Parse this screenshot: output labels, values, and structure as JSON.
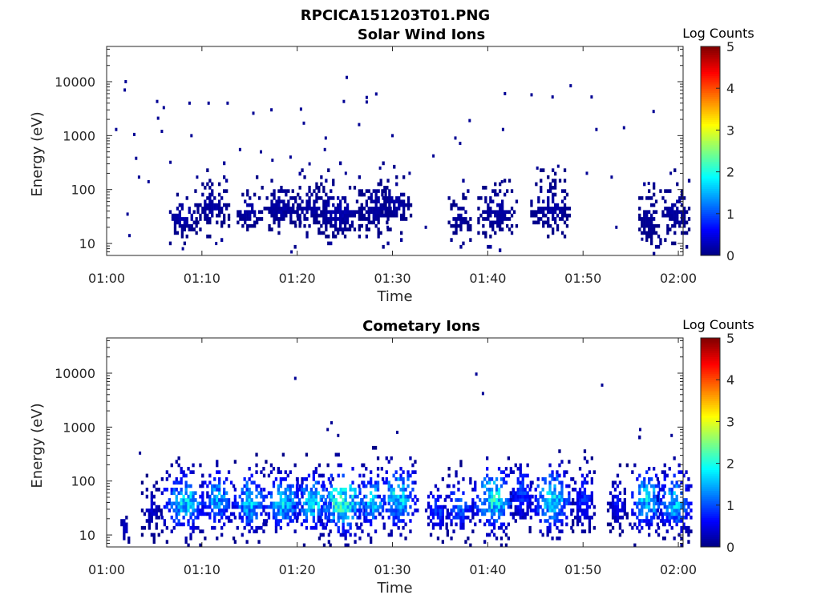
{
  "figure": {
    "filename": "RPCICA151203T01.PNG",
    "colorbar_label": "Log Counts",
    "colorbar_ticks": [
      "0",
      "1",
      "2",
      "3",
      "4",
      "5"
    ]
  },
  "chart_data": [
    {
      "type": "heatmap",
      "title": "Solar Wind Ions",
      "xlabel": "Time",
      "ylabel": "Energy (eV)",
      "x_ticks": [
        "01:00",
        "01:10",
        "01:20",
        "01:30",
        "01:40",
        "01:50",
        "02:00"
      ],
      "x_range_minutes": [
        0,
        60.5
      ],
      "y_scale": "log",
      "y_ticks": [
        "10",
        "100",
        "1000",
        "10000"
      ],
      "ylim": [
        6,
        45000
      ],
      "clim": [
        0,
        5
      ],
      "colormap": "jet",
      "description_of_data": "sparse low-count (log counts ~0-0.5) pixels; band at 20-100 eV in bursts",
      "bursts": [
        {
          "t": 7.9,
          "e": 30,
          "w": 1.6,
          "spread": 0.35,
          "level": 0.25
        },
        {
          "t": 11.0,
          "e": 50,
          "w": 1.8,
          "spread": 0.4,
          "level": 0.2
        },
        {
          "t": 14.8,
          "e": 40,
          "w": 1.4,
          "spread": 0.35,
          "level": 0.2
        },
        {
          "t": 18.2,
          "e": 45,
          "w": 2.0,
          "spread": 0.4,
          "level": 0.2
        },
        {
          "t": 21.2,
          "e": 45,
          "w": 1.8,
          "spread": 0.4,
          "level": 0.2
        },
        {
          "t": 24.3,
          "e": 40,
          "w": 2.4,
          "spread": 0.45,
          "level": 0.25
        },
        {
          "t": 28.2,
          "e": 45,
          "w": 1.8,
          "spread": 0.45,
          "level": 0.2
        },
        {
          "t": 30.4,
          "e": 60,
          "w": 1.6,
          "spread": 0.4,
          "level": 0.2
        },
        {
          "t": 37.0,
          "e": 30,
          "w": 1.2,
          "spread": 0.35,
          "level": 0.15
        },
        {
          "t": 40.9,
          "e": 40,
          "w": 2.0,
          "spread": 0.45,
          "level": 0.2
        },
        {
          "t": 46.4,
          "e": 45,
          "w": 2.2,
          "spread": 0.45,
          "level": 0.2
        },
        {
          "t": 56.8,
          "e": 30,
          "w": 1.0,
          "spread": 0.5,
          "level": 0.15
        },
        {
          "t": 59.6,
          "e": 40,
          "w": 1.6,
          "spread": 0.45,
          "level": 0.2
        }
      ],
      "scatter_points": [
        [
          1.0,
          1300
        ],
        [
          2.0,
          10000
        ],
        [
          1.9,
          7000
        ],
        [
          2.9,
          1050
        ],
        [
          5.3,
          4300
        ],
        [
          5.4,
          2100
        ],
        [
          6.0,
          3300
        ],
        [
          5.8,
          1200
        ],
        [
          8.7,
          4000
        ],
        [
          10.7,
          4000
        ],
        [
          12.7,
          4000
        ],
        [
          8.9,
          1000
        ],
        [
          15.4,
          2600
        ],
        [
          17.3,
          3000
        ],
        [
          20.7,
          1700
        ],
        [
          20.4,
          3100
        ],
        [
          23.0,
          900
        ],
        [
          25.2,
          12000
        ],
        [
          24.9,
          4300
        ],
        [
          27.3,
          4200
        ],
        [
          27.3,
          5100
        ],
        [
          28.3,
          5900
        ],
        [
          26.5,
          1600
        ],
        [
          30.0,
          1000
        ],
        [
          36.6,
          900
        ],
        [
          38.1,
          1900
        ],
        [
          41.6,
          1300
        ],
        [
          41.8,
          6000
        ],
        [
          44.6,
          5700
        ],
        [
          46.8,
          5200
        ],
        [
          48.7,
          8400
        ],
        [
          50.9,
          5200
        ],
        [
          51.4,
          1300
        ],
        [
          54.3,
          1400
        ],
        [
          57.4,
          2800
        ],
        [
          3.1,
          380
        ],
        [
          4.4,
          140
        ],
        [
          6.7,
          320
        ],
        [
          9.5,
          170
        ],
        [
          14.0,
          550
        ],
        [
          16.2,
          500
        ],
        [
          17.4,
          350
        ],
        [
          19.3,
          400
        ],
        [
          21.3,
          300
        ],
        [
          22.9,
          550
        ],
        [
          25.1,
          200
        ],
        [
          28.7,
          250
        ],
        [
          31.8,
          200
        ],
        [
          34.3,
          420
        ],
        [
          37.1,
          720
        ],
        [
          41.5,
          140
        ],
        [
          45.2,
          250
        ],
        [
          47.4,
          270
        ],
        [
          50.4,
          200
        ],
        [
          53.0,
          170
        ],
        [
          56.9,
          130
        ],
        [
          59.2,
          200
        ],
        [
          3.4,
          170
        ],
        [
          2.2,
          35
        ],
        [
          2.4,
          14
        ],
        [
          8.0,
          8
        ],
        [
          11.5,
          10
        ],
        [
          19.4,
          7
        ],
        [
          29.5,
          20
        ],
        [
          33.5,
          20
        ],
        [
          53.5,
          20
        ],
        [
          56.2,
          12
        ]
      ]
    },
    {
      "type": "heatmap",
      "title": "Cometary Ions",
      "xlabel": "Time",
      "ylabel": "Energy (eV)",
      "x_ticks": [
        "01:00",
        "01:10",
        "01:20",
        "01:30",
        "01:40",
        "01:50",
        "02:00"
      ],
      "x_range_minutes": [
        0,
        60.5
      ],
      "y_scale": "log",
      "y_ticks": [
        "10",
        "100",
        "1000",
        "10000"
      ],
      "ylim": [
        6,
        45000
      ],
      "clim": [
        0,
        5
      ],
      "colormap": "jet",
      "description_of_data": "repeated bursts with peak log counts ~2-2.5 near 30-50 eV, extending to ~500 eV",
      "bursts": [
        {
          "t": 1.8,
          "e": 12,
          "w": 0.6,
          "spread": 0.25,
          "level": 0.4
        },
        {
          "t": 4.6,
          "e": 30,
          "w": 1.0,
          "spread": 0.5,
          "level": 0.4
        },
        {
          "t": 8.1,
          "e": 40,
          "w": 2.4,
          "spread": 0.55,
          "level": 1.8
        },
        {
          "t": 11.5,
          "e": 45,
          "w": 1.8,
          "spread": 0.55,
          "level": 1.6
        },
        {
          "t": 14.9,
          "e": 40,
          "w": 1.8,
          "spread": 0.55,
          "level": 1.7
        },
        {
          "t": 18.4,
          "e": 40,
          "w": 2.0,
          "spread": 0.55,
          "level": 1.8
        },
        {
          "t": 21.6,
          "e": 40,
          "w": 2.0,
          "spread": 0.55,
          "level": 1.9
        },
        {
          "t": 24.6,
          "e": 40,
          "w": 2.4,
          "spread": 0.6,
          "level": 2.3
        },
        {
          "t": 27.7,
          "e": 40,
          "w": 1.6,
          "spread": 0.55,
          "level": 1.8
        },
        {
          "t": 30.5,
          "e": 50,
          "w": 2.0,
          "spread": 0.6,
          "level": 1.9
        },
        {
          "t": 34.6,
          "e": 30,
          "w": 1.2,
          "spread": 0.5,
          "level": 1.0
        },
        {
          "t": 36.9,
          "e": 35,
          "w": 1.6,
          "spread": 0.5,
          "level": 1.2
        },
        {
          "t": 40.5,
          "e": 45,
          "w": 2.2,
          "spread": 0.6,
          "level": 2.0
        },
        {
          "t": 43.5,
          "e": 60,
          "w": 1.2,
          "spread": 0.55,
          "level": 1.0
        },
        {
          "t": 46.6,
          "e": 45,
          "w": 2.2,
          "spread": 0.6,
          "level": 1.8
        },
        {
          "t": 50.0,
          "e": 50,
          "w": 1.2,
          "spread": 0.6,
          "level": 0.9
        },
        {
          "t": 53.5,
          "e": 40,
          "w": 1.0,
          "spread": 0.5,
          "level": 0.7
        },
        {
          "t": 56.6,
          "e": 45,
          "w": 1.8,
          "spread": 0.6,
          "level": 1.8
        },
        {
          "t": 59.5,
          "e": 40,
          "w": 1.8,
          "spread": 0.6,
          "level": 1.7
        }
      ],
      "scatter_points": [
        [
          19.8,
          8000
        ],
        [
          38.8,
          9600
        ],
        [
          39.5,
          4200
        ],
        [
          52.0,
          6000
        ],
        [
          23.6,
          1200
        ],
        [
          23.2,
          900
        ],
        [
          24.3,
          700
        ],
        [
          30.5,
          800
        ],
        [
          56.0,
          900
        ],
        [
          59.3,
          700
        ],
        [
          3.5,
          330
        ]
      ]
    }
  ]
}
